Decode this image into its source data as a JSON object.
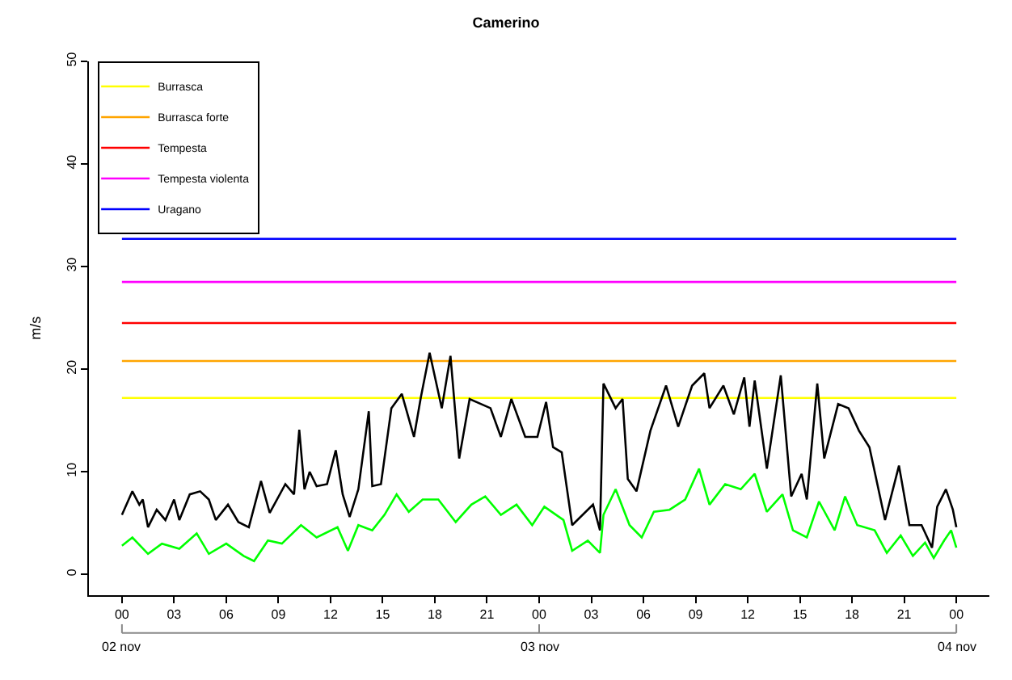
{
  "chart_data": {
    "type": "line",
    "title": "Camerino",
    "ylabel": "m/s",
    "xlim": [
      -1.9,
      49.9
    ],
    "ylim": [
      -2,
      50
    ],
    "xticks": [
      {
        "value": 0,
        "label": "00"
      },
      {
        "value": 3,
        "label": "03"
      },
      {
        "value": 6,
        "label": "06"
      },
      {
        "value": 9,
        "label": "09"
      },
      {
        "value": 12,
        "label": "12"
      },
      {
        "value": 15,
        "label": "15"
      },
      {
        "value": 18,
        "label": "18"
      },
      {
        "value": 21,
        "label": "21"
      },
      {
        "value": 24,
        "label": "00"
      },
      {
        "value": 27,
        "label": "03"
      },
      {
        "value": 30,
        "label": "06"
      },
      {
        "value": 33,
        "label": "09"
      },
      {
        "value": 36,
        "label": "12"
      },
      {
        "value": 39,
        "label": "15"
      },
      {
        "value": 42,
        "label": "18"
      },
      {
        "value": 45,
        "label": "21"
      },
      {
        "value": 48,
        "label": "00"
      }
    ],
    "annotations": [
      "02 nov",
      "03 nov",
      "04 nov"
    ],
    "yticks": [
      0,
      10,
      20,
      30,
      40,
      50
    ],
    "legend": "top left",
    "grid": false,
    "marker": "none",
    "line_style": "solid",
    "series": [
      {
        "name": "Burrasca",
        "color": "#ffff00",
        "x": [
          0,
          48
        ],
        "values": [
          17.2,
          17.2
        ]
      },
      {
        "name": "Burrasca forte",
        "color": "#ffa500",
        "x": [
          0,
          48
        ],
        "values": [
          20.8,
          20.8
        ]
      },
      {
        "name": "Tempesta",
        "color": "#ff0000",
        "x": [
          0,
          48
        ],
        "values": [
          24.5,
          24.5
        ]
      },
      {
        "name": "Tempesta violenta",
        "color": "#ff00ff",
        "x": [
          0,
          48
        ],
        "values": [
          28.5,
          28.5
        ]
      },
      {
        "name": "Uragano",
        "color": "#0000ff",
        "x": [
          0,
          48
        ],
        "values": [
          32.7,
          32.7
        ]
      },
      {
        "color": "#000000",
        "x": [
          0,
          0.6,
          1,
          1.2,
          1.5,
          2,
          2.5,
          3,
          3.3,
          3.9,
          4.5,
          5,
          5.4,
          6.1,
          6.7,
          7.3,
          8,
          8.5,
          9.4,
          9.9,
          10.2,
          10.5,
          10.8,
          11.2,
          11.8,
          12.3,
          12.7,
          13.1,
          13.6,
          14.2,
          14.4,
          14.9,
          15.5,
          16.1,
          16.8,
          17.2,
          17.7,
          18.4,
          18.9,
          19.4,
          20,
          21.2,
          21.8,
          22.4,
          23.2,
          23.9,
          24.4,
          24.8,
          25.3,
          25.9,
          27.1,
          27.5,
          27.7,
          28.4,
          28.8,
          29.1,
          29.6,
          30.4,
          31.3,
          32,
          32.8,
          33.5,
          33.8,
          34.6,
          35.2,
          35.8,
          36.1,
          36.4,
          37.1,
          37.9,
          38.5,
          39.1,
          39.4,
          40,
          40.4,
          41.2,
          41.8,
          42.4,
          43,
          43.9,
          44.7,
          45.3,
          46,
          46.6,
          46.9,
          47.4,
          47.8,
          48
        ],
        "values": [
          5.8,
          8.1,
          6.8,
          7.3,
          4.6,
          6.3,
          5.3,
          7.3,
          5.3,
          7.8,
          8.1,
          7.3,
          5.3,
          6.8,
          5.1,
          4.6,
          9.1,
          6.0,
          8.8,
          7.8,
          14.1,
          8.3,
          10.0,
          8.6,
          8.8,
          12.1,
          7.8,
          5.6,
          8.3,
          15.9,
          8.6,
          8.8,
          16.2,
          17.6,
          13.4,
          17.3,
          21.6,
          16.2,
          21.3,
          11.3,
          17.1,
          16.2,
          13.4,
          17.1,
          13.4,
          13.4,
          16.8,
          12.4,
          11.9,
          4.8,
          6.8,
          4.3,
          18.6,
          16.2,
          17.1,
          9.3,
          8.1,
          14.0,
          18.4,
          14.4,
          18.4,
          19.6,
          16.2,
          18.4,
          15.6,
          19.2,
          14.4,
          18.9,
          10.3,
          19.4,
          7.6,
          9.8,
          7.3,
          18.6,
          11.3,
          16.6,
          16.2,
          14.0,
          12.4,
          5.3,
          10.6,
          4.8,
          4.8,
          2.6,
          6.6,
          8.3,
          6.3,
          4.6
        ]
      },
      {
        "color": "#00ff00",
        "x": [
          0,
          0.6,
          1.5,
          2.3,
          3.3,
          4.3,
          5,
          6,
          7,
          7.6,
          8.4,
          9.2,
          10.3,
          11.2,
          12.4,
          13,
          13.6,
          14.4,
          15.1,
          15.8,
          16.5,
          17.3,
          18.2,
          19.2,
          20.1,
          20.9,
          21.8,
          22.7,
          23.6,
          24.3,
          25.4,
          25.9,
          26.8,
          27.5,
          27.7,
          28.4,
          29.2,
          29.9,
          30.6,
          31.5,
          32.4,
          33.2,
          33.8,
          34.7,
          35.6,
          36.4,
          37.1,
          38,
          38.6,
          39.4,
          40.1,
          41,
          41.6,
          42.3,
          43.3,
          44,
          44.8,
          45.5,
          46.2,
          46.7,
          47.3,
          47.7,
          48
        ],
        "values": [
          2.8,
          3.6,
          2.0,
          3.0,
          2.5,
          4.0,
          2.0,
          3.0,
          1.8,
          1.3,
          3.3,
          3.0,
          4.8,
          3.6,
          4.6,
          2.3,
          4.8,
          4.3,
          5.8,
          7.8,
          6.1,
          7.3,
          7.3,
          5.1,
          6.8,
          7.6,
          5.8,
          6.8,
          4.8,
          6.6,
          5.3,
          2.3,
          3.3,
          2.1,
          5.8,
          8.3,
          4.8,
          3.6,
          6.1,
          6.3,
          7.3,
          10.3,
          6.8,
          8.8,
          8.3,
          9.8,
          6.1,
          7.8,
          4.3,
          3.6,
          7.1,
          4.3,
          7.6,
          4.8,
          4.3,
          2.1,
          3.8,
          1.8,
          3.1,
          1.6,
          3.3,
          4.3,
          2.6
        ]
      }
    ]
  }
}
